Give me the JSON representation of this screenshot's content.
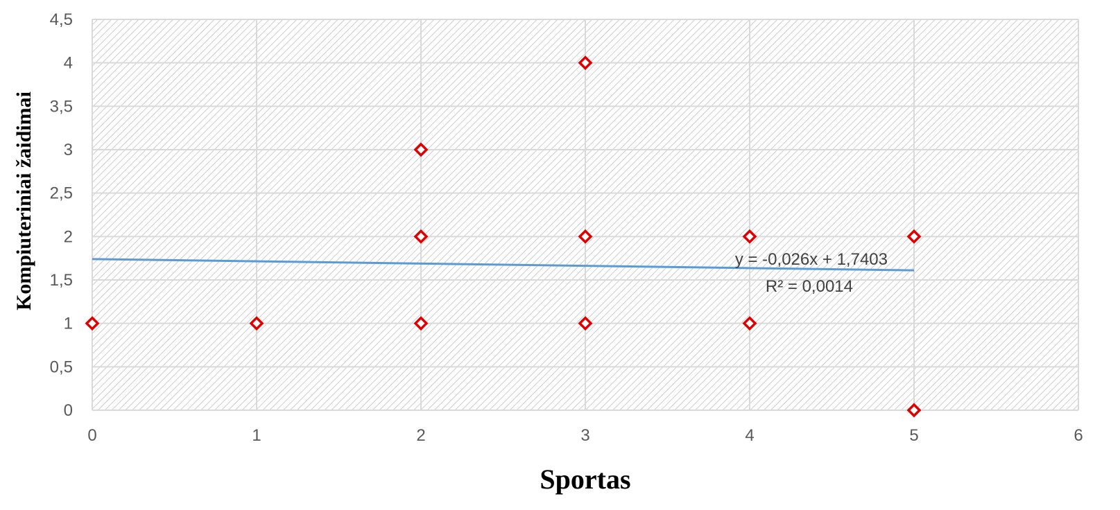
{
  "chart_data": {
    "type": "scatter",
    "xlabel": "Sportas",
    "ylabel": "Kompiuteriniai žaidimai",
    "xlim": [
      0,
      6
    ],
    "ylim": [
      0,
      4.5
    ],
    "x_ticks": [
      "0",
      "1",
      "2",
      "3",
      "4",
      "5",
      "6"
    ],
    "y_ticks": [
      "0",
      "0,5",
      "1",
      "1,5",
      "2",
      "2,5",
      "3",
      "3,5",
      "4",
      "4,5"
    ],
    "x_tick_values": [
      0,
      1,
      2,
      3,
      4,
      5,
      6
    ],
    "y_tick_values": [
      0,
      0.5,
      1,
      1.5,
      2,
      2.5,
      3,
      3.5,
      4,
      4.5
    ],
    "grid": true,
    "points": [
      {
        "x": 0,
        "y": 1
      },
      {
        "x": 1,
        "y": 1
      },
      {
        "x": 2,
        "y": 1
      },
      {
        "x": 2,
        "y": 2
      },
      {
        "x": 2,
        "y": 3
      },
      {
        "x": 3,
        "y": 1
      },
      {
        "x": 3,
        "y": 2
      },
      {
        "x": 3,
        "y": 4
      },
      {
        "x": 4,
        "y": 1
      },
      {
        "x": 4,
        "y": 2
      },
      {
        "x": 5,
        "y": 0
      },
      {
        "x": 5,
        "y": 2
      }
    ],
    "trendline": {
      "slope": -0.026,
      "intercept": 1.7403,
      "x_range": [
        0,
        5
      ],
      "equation": "y = -0,026x + 1,7403",
      "r_squared": "R² = 0,0014"
    },
    "colors": {
      "marker": "#e00000",
      "trendline": "#5b9bd5",
      "grid": "#d9d9d9",
      "hatch": "#bfbfbf"
    }
  }
}
